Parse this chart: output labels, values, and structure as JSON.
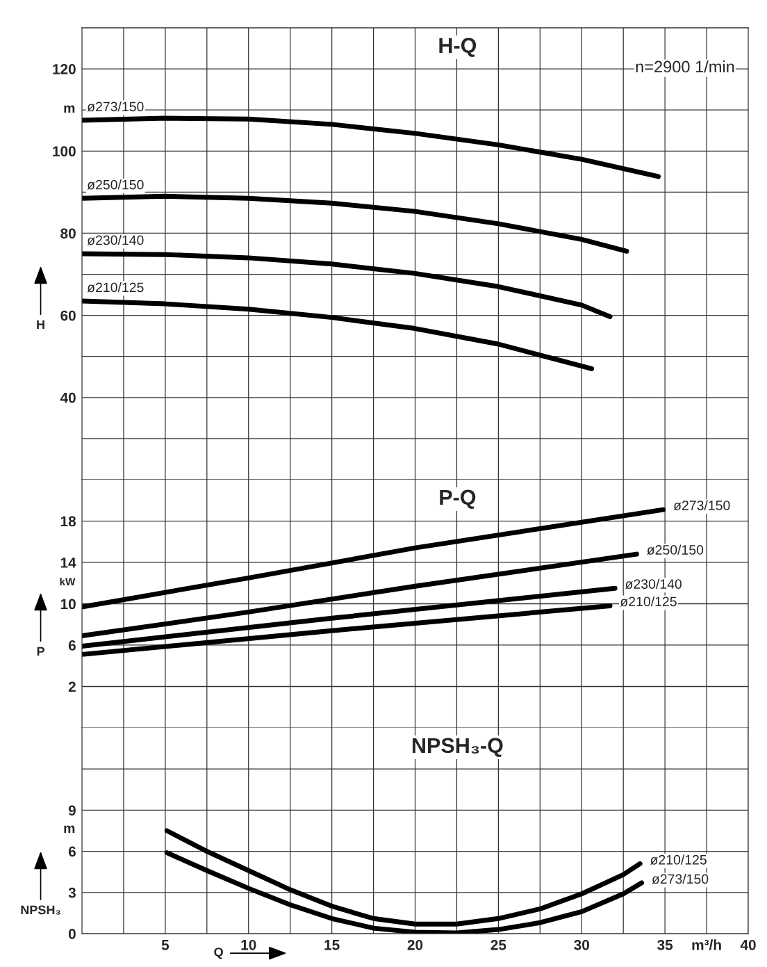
{
  "chart_data": [
    {
      "type": "line",
      "title": "H-Q",
      "ylabel": "H",
      "annotations": [
        "n=2900 1/min",
        "m"
      ],
      "xlim": [
        0,
        40
      ],
      "ylim": [
        20,
        130
      ],
      "xticks": [
        {
          "value": 2.5,
          "label": null
        },
        {
          "value": 5,
          "label": null
        },
        {
          "value": 7.5,
          "label": null
        },
        {
          "value": 10,
          "label": null
        },
        {
          "value": 12.5,
          "label": null
        },
        {
          "value": 15,
          "label": null
        },
        {
          "value": 17.5,
          "label": null
        },
        {
          "value": 20,
          "label": null
        },
        {
          "value": 22.5,
          "label": null
        },
        {
          "value": 25,
          "label": null
        },
        {
          "value": 27.5,
          "label": null
        },
        {
          "value": 30,
          "label": null
        },
        {
          "value": 32.5,
          "label": null
        },
        {
          "value": 35,
          "label": null
        },
        {
          "value": 37.5,
          "label": null
        }
      ],
      "yticks": [
        {
          "value": 30,
          "label": null
        },
        40,
        {
          "value": 50,
          "label": null
        },
        60,
        {
          "value": 70,
          "label": null
        },
        80,
        {
          "value": 90,
          "label": null
        },
        100,
        {
          "value": 110,
          "label": null
        },
        120
      ],
      "tick_labels": "y",
      "grid": true,
      "marker": "none",
      "line_style": "solid",
      "series": [
        {
          "name": "ø273/150",
          "color": "#000000",
          "x": [
            0,
            5,
            10,
            15,
            20,
            25,
            30,
            34.6
          ],
          "values": [
            107.5,
            108,
            107.8,
            106.5,
            104.3,
            101.5,
            98,
            93.8
          ]
        },
        {
          "name": "ø250/150",
          "color": "#000000",
          "x": [
            0,
            5,
            10,
            15,
            20,
            25,
            30,
            32.7
          ],
          "values": [
            88.5,
            89,
            88.5,
            87.3,
            85.3,
            82.3,
            78.5,
            75.6
          ]
        },
        {
          "name": "ø230/140",
          "color": "#000000",
          "x": [
            0,
            5,
            10,
            15,
            20,
            25,
            30,
            31.7
          ],
          "values": [
            75,
            74.8,
            74,
            72.5,
            70.2,
            67,
            62.5,
            59.7
          ]
        },
        {
          "name": "ø210/125",
          "color": "#000000",
          "x": [
            0,
            5,
            10,
            15,
            20,
            25,
            30.6
          ],
          "values": [
            63.5,
            62.8,
            61.5,
            59.5,
            56.8,
            53,
            47
          ]
        }
      ]
    },
    {
      "type": "line",
      "title": "P-Q",
      "ylabel": "P",
      "annotations": [
        "kW"
      ],
      "xlim": [
        0,
        40
      ],
      "ylim": [
        -2,
        22
      ],
      "xticks": [
        {
          "value": 2.5,
          "label": null
        },
        {
          "value": 5,
          "label": null
        },
        {
          "value": 7.5,
          "label": null
        },
        {
          "value": 10,
          "label": null
        },
        {
          "value": 12.5,
          "label": null
        },
        {
          "value": 15,
          "label": null
        },
        {
          "value": 17.5,
          "label": null
        },
        {
          "value": 20,
          "label": null
        },
        {
          "value": 22.5,
          "label": null
        },
        {
          "value": 25,
          "label": null
        },
        {
          "value": 27.5,
          "label": null
        },
        {
          "value": 30,
          "label": null
        },
        {
          "value": 32.5,
          "label": null
        },
        {
          "value": 35,
          "label": null
        },
        {
          "value": 37.5,
          "label": null
        }
      ],
      "yticks": [
        2,
        6,
        10,
        14,
        18
      ],
      "tick_labels": "y",
      "grid": true,
      "marker": "none",
      "line_style": "solid",
      "series": [
        {
          "name": "ø273/150",
          "color": "#000000",
          "x": [
            0,
            10,
            20,
            34.9
          ],
          "values": [
            9.7,
            12.5,
            15.4,
            19.1
          ]
        },
        {
          "name": "ø250/150",
          "color": "#000000",
          "x": [
            0,
            10,
            20,
            33.3
          ],
          "values": [
            6.9,
            9.2,
            11.7,
            14.8
          ]
        },
        {
          "name": "ø230/140",
          "color": "#000000",
          "x": [
            0,
            15,
            32
          ],
          "values": [
            5.9,
            8.6,
            11.5
          ]
        },
        {
          "name": "ø210/125",
          "color": "#000000",
          "x": [
            0,
            15,
            31.7
          ],
          "values": [
            5.1,
            7.4,
            9.8
          ]
        }
      ]
    },
    {
      "type": "line",
      "title": "NPSH₃-Q",
      "ylabel": "NPSH₃",
      "xlabel": "Q",
      "annotations": [
        "m"
      ],
      "xlim": [
        0,
        40
      ],
      "ylim": [
        0,
        15
      ],
      "xticks": [
        {
          "value": 2.5,
          "label": null
        },
        5,
        {
          "value": 7.5,
          "label": null
        },
        10,
        {
          "value": 12.5,
          "label": null
        },
        15,
        {
          "value": 17.5,
          "label": null
        },
        20,
        {
          "value": 22.5,
          "label": null
        },
        25,
        {
          "value": 27.5,
          "label": null
        },
        30,
        {
          "value": 32.5,
          "label": null
        },
        35,
        {
          "value": 37.5,
          "label": "m³/h"
        },
        40
      ],
      "yticks": [
        0,
        3,
        6,
        9,
        {
          "value": 12,
          "label": null
        }
      ],
      "grid": true,
      "marker": "none",
      "line_style": "solid",
      "series": [
        {
          "name": "ø210/125",
          "color": "#000000",
          "x": [
            5.1,
            7.5,
            10,
            12.5,
            15,
            17.5,
            20,
            22.5,
            25,
            27.5,
            30,
            32.5,
            33.5
          ],
          "values": [
            7.5,
            6.0,
            4.6,
            3.2,
            2.0,
            1.1,
            0.7,
            0.7,
            1.1,
            1.8,
            2.9,
            4.3,
            5.1
          ]
        },
        {
          "name": "ø273/150",
          "color": "#000000",
          "x": [
            5.1,
            7.5,
            10,
            12.5,
            15,
            17.5,
            20,
            22.5,
            25,
            27.5,
            30,
            32.5,
            33.6
          ],
          "values": [
            5.9,
            4.6,
            3.3,
            2.1,
            1.1,
            0.4,
            0.1,
            0.05,
            0.3,
            0.8,
            1.6,
            2.9,
            3.7
          ]
        }
      ]
    }
  ]
}
